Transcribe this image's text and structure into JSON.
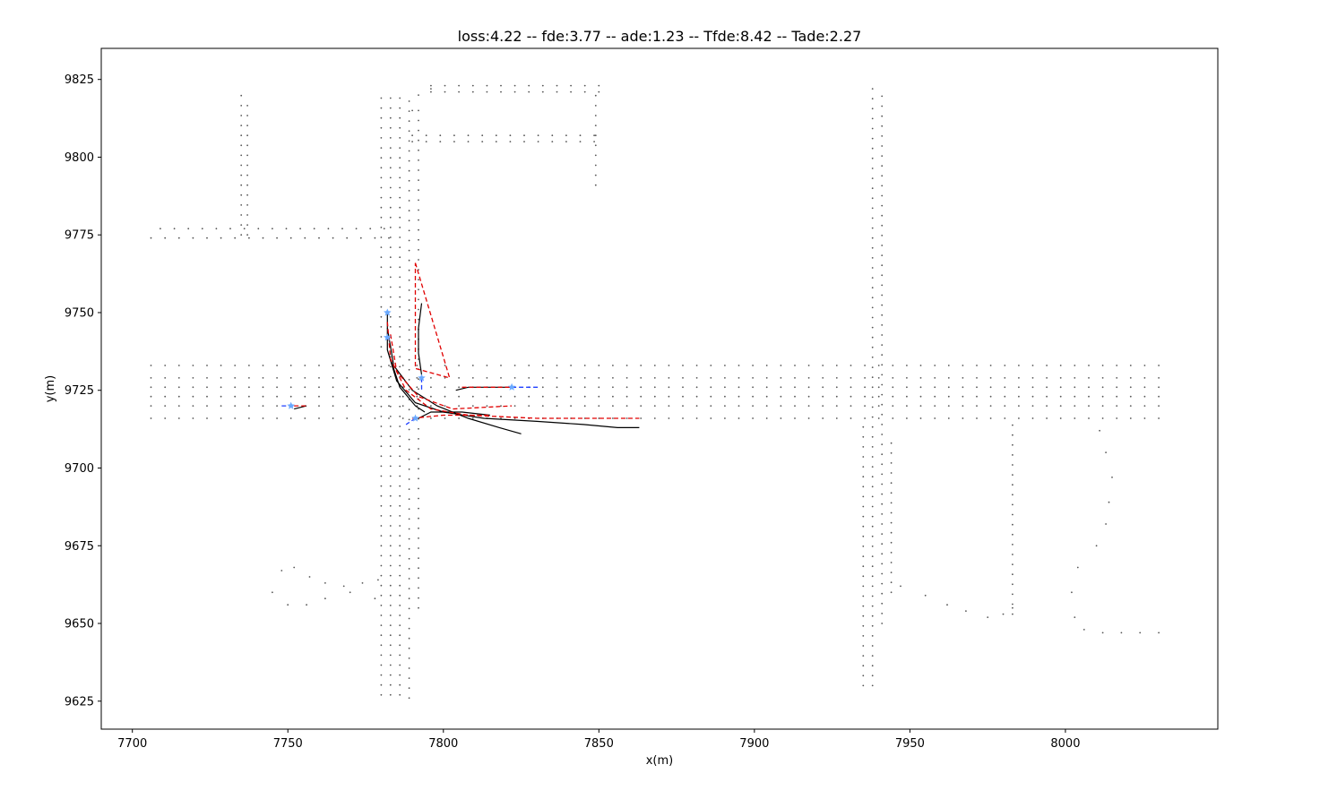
{
  "chart_data": {
    "type": "scatter",
    "title": "loss:4.22 -- fde:3.77 -- ade:1.23 -- Tfde:8.42 -- Tade:2.27",
    "xlabel": "x(m)",
    "ylabel": "y(m)",
    "xlim": [
      7690,
      8049
    ],
    "ylim": [
      9616,
      9835
    ],
    "xticks": [
      7700,
      7750,
      7800,
      7850,
      7900,
      7950,
      8000
    ],
    "yticks": [
      9625,
      9650,
      9675,
      9700,
      9725,
      9750,
      9775,
      9800,
      9825
    ],
    "grid": false,
    "colors": {
      "map_points": "#555555",
      "ground_truth": "#000000",
      "prediction": "#e00000",
      "history": "#1f3fff",
      "agent_marker": "#6aa9ff"
    },
    "map_lines": [
      {
        "name": "h-road-1",
        "x0": 7706,
        "x1": 8030,
        "y": 9733,
        "step": 4.5
      },
      {
        "name": "h-road-2",
        "x0": 7706,
        "x1": 8030,
        "y": 9729,
        "step": 4.5
      },
      {
        "name": "h-road-3",
        "x0": 7706,
        "x1": 8030,
        "y": 9726,
        "step": 4.5
      },
      {
        "name": "h-road-4",
        "x0": 7706,
        "x1": 8030,
        "y": 9723,
        "step": 4.5
      },
      {
        "name": "h-road-5",
        "x0": 7706,
        "x1": 8030,
        "y": 9720,
        "step": 4.5
      },
      {
        "name": "h-road-6",
        "x0": 7706,
        "x1": 8030,
        "y": 9716,
        "step": 4.5
      },
      {
        "name": "top-left-road-1",
        "x0": 7706,
        "x1": 7785,
        "y": 9774,
        "step": 4.5
      },
      {
        "name": "top-left-road-2",
        "x0": 7709,
        "x1": 7785,
        "y": 9777,
        "step": 4.5
      },
      {
        "name": "top-right-road-1",
        "x0": 7790,
        "x1": 7852,
        "y": 9807,
        "step": 4.5
      },
      {
        "name": "top-right-road-2",
        "x0": 7790,
        "x1": 7852,
        "y": 9805,
        "step": 4.5
      },
      {
        "name": "top-right-road-3",
        "x0": 7796,
        "x1": 7852,
        "y": 9823,
        "step": 4.5
      },
      {
        "name": "top-right-road-4",
        "x0": 7796,
        "x1": 7852,
        "y": 9821,
        "step": 4.5
      }
    ],
    "map_vlines": [
      {
        "name": "v-left-1",
        "x": 7780,
        "y0": 9627,
        "y1": 9820,
        "step": 3.2
      },
      {
        "name": "v-left-2",
        "x": 7783,
        "y0": 9627,
        "y1": 9820,
        "step": 3.2
      },
      {
        "name": "v-left-3",
        "x": 7786,
        "y0": 9627,
        "y1": 9820,
        "step": 3.2
      },
      {
        "name": "v-left-4",
        "x": 7789,
        "y0": 9626,
        "y1": 9819,
        "step": 3.2
      },
      {
        "name": "v-left-5",
        "x": 7792,
        "y0": 9655,
        "y1": 9818,
        "step": 3.2
      },
      {
        "name": "v-far-left-1",
        "x": 7735,
        "y0": 9775,
        "y1": 9821,
        "step": 3.2
      },
      {
        "name": "v-far-left-2",
        "x": 7737,
        "y0": 9775,
        "y1": 9819,
        "step": 3.2
      },
      {
        "name": "v-mid-1",
        "x": 7849,
        "y0": 9791,
        "y1": 9822,
        "step": 3.2
      },
      {
        "name": "v-right-1",
        "x": 7935,
        "y0": 9630,
        "y1": 9715,
        "step": 3.2
      },
      {
        "name": "v-right-2",
        "x": 7938,
        "y0": 9630,
        "y1": 9825,
        "step": 3.2
      },
      {
        "name": "v-right-3",
        "x": 7941,
        "y0": 9650,
        "y1": 9822,
        "step": 3.2
      },
      {
        "name": "v-right-4",
        "x": 7944,
        "y0": 9660,
        "y1": 9710,
        "step": 3.2
      },
      {
        "name": "v-far-right-1",
        "x": 7983,
        "y0": 9653,
        "y1": 9716,
        "step": 3.2
      }
    ],
    "map_curves": [
      {
        "name": "curve-bottom-left",
        "points": [
          [
            7745,
            9660
          ],
          [
            7748,
            9667
          ],
          [
            7752,
            9668
          ],
          [
            7757,
            9665
          ],
          [
            7762,
            9663
          ],
          [
            7768,
            9662
          ],
          [
            7774,
            9663
          ],
          [
            7779,
            9664
          ],
          [
            7778,
            9658
          ],
          [
            7770,
            9660
          ],
          [
            7762,
            9658
          ],
          [
            7756,
            9656
          ],
          [
            7750,
            9656
          ]
        ]
      },
      {
        "name": "curve-bottom-right-1",
        "points": [
          [
            7947,
            9662
          ],
          [
            7955,
            9659
          ],
          [
            7962,
            9656
          ],
          [
            7968,
            9654
          ],
          [
            7975,
            9652
          ],
          [
            7980,
            9653
          ],
          [
            7983,
            9655
          ]
        ]
      },
      {
        "name": "curve-bottom-right-2",
        "points": [
          [
            8011,
            9712
          ],
          [
            8013,
            9705
          ],
          [
            8015,
            9697
          ],
          [
            8014,
            9689
          ],
          [
            8013,
            9682
          ],
          [
            8010,
            9675
          ],
          [
            8004,
            9668
          ],
          [
            8002,
            9660
          ],
          [
            8003,
            9652
          ],
          [
            8006,
            9648
          ],
          [
            8012,
            9647
          ],
          [
            8018,
            9647
          ],
          [
            8024,
            9647
          ],
          [
            8030,
            9647
          ]
        ]
      },
      {
        "name": "curve-top",
        "points": [
          [
            7790,
            9815
          ],
          [
            7792,
            9820
          ],
          [
            7796,
            9822
          ]
        ]
      }
    ],
    "ground_truth": [
      {
        "name": "gt-agent-1",
        "points": [
          [
            7782,
            9750
          ],
          [
            7782,
            9738
          ],
          [
            7785,
            9728
          ],
          [
            7791,
            9721
          ],
          [
            7800,
            9718
          ],
          [
            7813,
            9716
          ],
          [
            7830,
            9715
          ],
          [
            7845,
            9714
          ],
          [
            7856,
            9713
          ],
          [
            7863,
            9713
          ]
        ]
      },
      {
        "name": "gt-agent-2",
        "points": [
          [
            7782,
            9745
          ],
          [
            7784,
            9733
          ],
          [
            7790,
            9725
          ],
          [
            7798,
            9720
          ],
          [
            7808,
            9716
          ],
          [
            7818,
            9713
          ],
          [
            7825,
            9711
          ]
        ]
      },
      {
        "name": "gt-agent-3",
        "points": [
          [
            7783,
            9735
          ],
          [
            7786,
            9726
          ],
          [
            7791,
            9720
          ],
          [
            7794,
            9718
          ]
        ]
      },
      {
        "name": "gt-agent-4",
        "points": [
          [
            7793,
            9753
          ],
          [
            7792,
            9745
          ],
          [
            7792,
            9737
          ],
          [
            7793,
            9730
          ]
        ]
      },
      {
        "name": "gt-agent-5",
        "points": [
          [
            7792,
            9716
          ],
          [
            7796,
            9718
          ],
          [
            7806,
            9718
          ],
          [
            7815,
            9717
          ]
        ]
      },
      {
        "name": "gt-agent-6",
        "points": [
          [
            7804,
            9725
          ],
          [
            7808,
            9726
          ],
          [
            7815,
            9726
          ],
          [
            7822,
            9726
          ]
        ]
      },
      {
        "name": "gt-agent-7",
        "points": [
          [
            7752,
            9719
          ],
          [
            7756,
            9720
          ]
        ]
      }
    ],
    "predictions": [
      {
        "name": "pred-agent-1",
        "points": [
          [
            7782,
            9747
          ],
          [
            7783,
            9735
          ],
          [
            7788,
            9725
          ],
          [
            7796,
            9719
          ],
          [
            7808,
            9717
          ],
          [
            7830,
            9716
          ],
          [
            7863,
            9716
          ]
        ]
      },
      {
        "name": "pred-agent-2",
        "points": [
          [
            7783,
            9743
          ],
          [
            7785,
            9731
          ],
          [
            7792,
            9723
          ],
          [
            7803,
            9719
          ],
          [
            7822,
            9720
          ]
        ]
      },
      {
        "name": "pred-agent-3",
        "points": [
          [
            7791,
            9766
          ],
          [
            7802,
            9729
          ],
          [
            7791,
            9732
          ],
          [
            7791,
            9766
          ]
        ]
      },
      {
        "name": "pred-agent-4",
        "points": [
          [
            7790,
            9716
          ],
          [
            7800,
            9717
          ],
          [
            7815,
            9717
          ]
        ]
      },
      {
        "name": "pred-agent-5",
        "points": [
          [
            7806,
            9726
          ],
          [
            7822,
            9726
          ]
        ]
      },
      {
        "name": "pred-agent-6",
        "points": [
          [
            7752,
            9720
          ],
          [
            7756,
            9720
          ]
        ]
      }
    ],
    "history": [
      {
        "name": "hist-agent-1",
        "points": [
          [
            7822,
            9726
          ],
          [
            7831,
            9726
          ]
        ]
      },
      {
        "name": "hist-agent-2",
        "points": [
          [
            7748,
            9720
          ],
          [
            7752,
            9720
          ]
        ]
      },
      {
        "name": "hist-agent-3",
        "points": [
          [
            7791,
            9716
          ],
          [
            7788,
            9714
          ]
        ]
      },
      {
        "name": "hist-agent-4",
        "points": [
          [
            7793,
            9729
          ],
          [
            7793,
            9725
          ]
        ]
      }
    ],
    "agent_markers": [
      [
        7782,
        9750
      ],
      [
        7782,
        9742
      ],
      [
        7793,
        9729
      ],
      [
        7791,
        9716
      ],
      [
        7822,
        9726
      ],
      [
        7751,
        9720
      ]
    ]
  }
}
